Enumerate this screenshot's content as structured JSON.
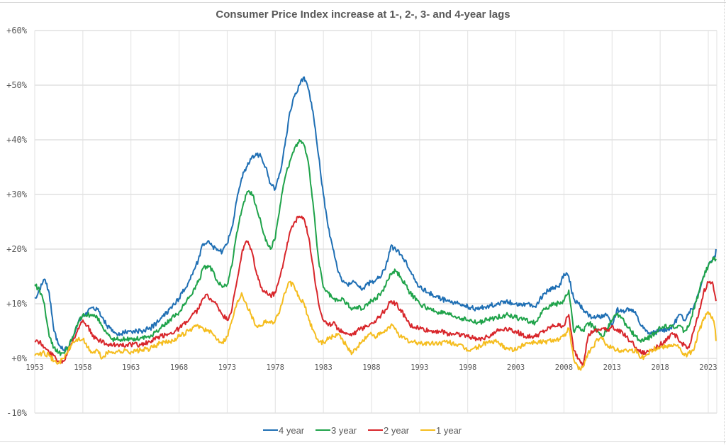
{
  "chart_data": {
    "type": "line",
    "title": "Consumer Price Index increase at 1-, 2-, 3- and 4-year lags",
    "xlabel": "",
    "ylabel": "",
    "xlim": [
      1953,
      2023.8
    ],
    "ylim": [
      -10,
      60
    ],
    "grid": true,
    "legend_position": "bottom",
    "x_tick_labels": [
      "1953",
      "1958",
      "1963",
      "1968",
      "1973",
      "1978",
      "1983",
      "1988",
      "1993",
      "1998",
      "2003",
      "2008",
      "2013",
      "2018",
      "2023"
    ],
    "x_ticks": [
      1953,
      1958,
      1963,
      1968,
      1973,
      1978,
      1983,
      1988,
      1993,
      1998,
      2003,
      2008,
      2013,
      2018,
      2023
    ],
    "y_ticks": [
      60,
      50,
      40,
      30,
      20,
      10,
      0,
      -10
    ],
    "y_tick_labels": [
      "+60%",
      "+50%",
      "+40%",
      "+30%",
      "+20%",
      "+10%",
      "+0%",
      "-10%"
    ],
    "x": [
      1953,
      1953.5,
      1954,
      1954.5,
      1955,
      1955.5,
      1956,
      1956.5,
      1957,
      1957.5,
      1958,
      1958.5,
      1959,
      1959.5,
      1960,
      1960.5,
      1961,
      1961.5,
      1962,
      1962.5,
      1963,
      1964,
      1965,
      1966,
      1967,
      1968,
      1969,
      1970,
      1970.5,
      1971,
      1971.5,
      1972,
      1972.5,
      1973,
      1973.5,
      1974,
      1974.5,
      1975,
      1975.5,
      1976,
      1976.5,
      1977,
      1977.5,
      1978,
      1978.5,
      1979,
      1979.5,
      1980,
      1980.5,
      1981,
      1981.5,
      1982,
      1982.5,
      1983,
      1983.5,
      1984,
      1984.5,
      1985,
      1985.5,
      1986,
      1986.5,
      1987,
      1987.5,
      1988,
      1988.5,
      1989,
      1989.5,
      1990,
      1990.5,
      1991,
      1991.5,
      1992,
      1993,
      1994,
      1995,
      1996,
      1997,
      1998,
      1999,
      2000,
      2001,
      2002,
      2003,
      2004,
      2005,
      2006,
      2007,
      2007.5,
      2008,
      2008.5,
      2009,
      2009.5,
      2010,
      2010.5,
      2011,
      2011.5,
      2012,
      2012.5,
      2013,
      2013.5,
      2014,
      2014.5,
      2015,
      2015.5,
      2016,
      2016.5,
      2017,
      2018,
      2019,
      2019.5,
      2020,
      2020.5,
      2021,
      2021.5,
      2022,
      2022.5,
      2023,
      2023.5,
      2023.8
    ],
    "series": [
      {
        "name": "4 year",
        "color": "#1f6fb4",
        "values": [
          11,
          12.5,
          14.5,
          12,
          5,
          2.5,
          1.5,
          2,
          4,
          6.5,
          8,
          8.5,
          9.3,
          9,
          7.5,
          6,
          5,
          4.5,
          4.5,
          4.8,
          5,
          5,
          5.5,
          7,
          9,
          11,
          14,
          18,
          21,
          21.5,
          20.5,
          20,
          19.5,
          21,
          24,
          29,
          33,
          35,
          36.5,
          37.5,
          37,
          35,
          32,
          31,
          34,
          39,
          45,
          48,
          50,
          51.5,
          49,
          44,
          37,
          30,
          24,
          20,
          16,
          14,
          13.5,
          14,
          13.5,
          12.5,
          13.5,
          14,
          14.5,
          15,
          17,
          20.5,
          20,
          19,
          18,
          16,
          13,
          12,
          11,
          10.5,
          10,
          9.5,
          9,
          9.5,
          10,
          10.5,
          10,
          10,
          9.5,
          12,
          13,
          13,
          15.5,
          15,
          11,
          10,
          9,
          8,
          7.5,
          8,
          7.5,
          8,
          6,
          9,
          8.5,
          9,
          9,
          8,
          6,
          5,
          4.5,
          5,
          5.5,
          6.5,
          8,
          7,
          8.5,
          9.5,
          12,
          15,
          17,
          18.5,
          19,
          19.5,
          20
        ]
      },
      {
        "name": "3 year",
        "color": "#1fa34a",
        "values": [
          13.5,
          12.5,
          10,
          4,
          2,
          1,
          1,
          2,
          4,
          6.5,
          8,
          8,
          8,
          7.5,
          6,
          4.5,
          3.5,
          3.5,
          3.5,
          3.5,
          3.5,
          3.8,
          4,
          5.5,
          7,
          8.5,
          11,
          14,
          16.5,
          17,
          16,
          14,
          13,
          13.5,
          17,
          23,
          27,
          30,
          30.5,
          28,
          25,
          21.5,
          20,
          22,
          28,
          33,
          36,
          38.5,
          40,
          39,
          35,
          27,
          18,
          13,
          12,
          11,
          10.5,
          11,
          10,
          9,
          9.5,
          9,
          10,
          10.5,
          11,
          12,
          13.5,
          15.5,
          16,
          15,
          13.5,
          12,
          10,
          9,
          8.5,
          8,
          7.5,
          7,
          6.5,
          7,
          7.5,
          8,
          7.5,
          7,
          6.5,
          9,
          10,
          10,
          10.5,
          12.5,
          5,
          6,
          5,
          6.5,
          6,
          5,
          4,
          5.5,
          7,
          8,
          7.5,
          6,
          5,
          4,
          3,
          3.5,
          4,
          5.5,
          6,
          5.5,
          6,
          5,
          6,
          9,
          12,
          15,
          17,
          18.5,
          18,
          18.2
        ]
      },
      {
        "name": "2 year",
        "color": "#d8262b",
        "values": [
          3,
          3,
          2,
          1,
          0.5,
          -0.5,
          -0.5,
          1.5,
          3.5,
          5.5,
          7,
          6,
          4,
          3.5,
          3,
          2.5,
          2.3,
          2.5,
          2.5,
          2.5,
          2.5,
          2.5,
          3,
          4,
          4.5,
          5.5,
          7,
          9,
          11,
          11.5,
          10.5,
          9.5,
          8,
          7,
          9,
          14,
          19,
          21.5,
          20,
          16,
          13,
          12,
          11.5,
          12,
          15,
          19,
          23,
          25,
          26,
          25.5,
          22,
          16,
          10,
          7,
          6,
          6.5,
          5.5,
          5,
          4.5,
          4.5,
          5,
          5.5,
          6,
          6.5,
          7,
          8,
          9,
          10.5,
          10,
          9,
          7.5,
          6,
          5.5,
          5,
          5,
          4.5,
          4.5,
          4,
          3.5,
          4,
          5,
          5.5,
          5,
          4,
          4,
          5,
          6,
          6,
          6,
          8,
          1.5,
          0,
          -1,
          4,
          5,
          5,
          5.5,
          5,
          6,
          5,
          5,
          4,
          3,
          2,
          1,
          1,
          1.5,
          2.5,
          4,
          4.5,
          3,
          2.5,
          2,
          5,
          8,
          12,
          14,
          13.5,
          11,
          10.5
        ]
      },
      {
        "name": "1 year",
        "color": "#f5bd1f",
        "values": [
          0.5,
          0.8,
          1,
          0.5,
          -0.5,
          -0.8,
          0,
          1.5,
          3,
          3.5,
          3.5,
          2,
          1,
          1.5,
          0,
          1,
          1.2,
          1.3,
          1.2,
          1.5,
          1.2,
          1.5,
          1.8,
          2.8,
          3,
          4,
          5,
          6,
          5.5,
          5,
          4.5,
          3.5,
          3,
          4,
          7,
          10,
          12,
          10,
          8,
          6,
          6,
          7,
          6.5,
          7,
          9,
          12,
          14,
          13,
          11,
          10,
          7,
          5,
          3,
          3,
          3.5,
          4,
          4.5,
          3.5,
          2,
          1,
          2,
          3,
          4,
          4.5,
          4,
          4.5,
          5,
          6,
          5.5,
          4,
          3.5,
          3,
          2.8,
          2.7,
          2.8,
          3,
          2.5,
          1.5,
          2,
          3,
          3,
          2,
          1.5,
          2.8,
          3,
          3,
          3.5,
          3.5,
          4,
          5.5,
          0,
          -2,
          -1.5,
          1,
          2,
          3.5,
          3.5,
          2.5,
          2,
          1.5,
          1.5,
          1.5,
          1.5,
          1.5,
          0,
          0.5,
          1.5,
          2,
          2.5,
          2.5,
          2,
          0.5,
          1,
          1.5,
          5,
          7,
          8.5,
          7,
          5,
          3,
          3.2
        ]
      }
    ]
  }
}
